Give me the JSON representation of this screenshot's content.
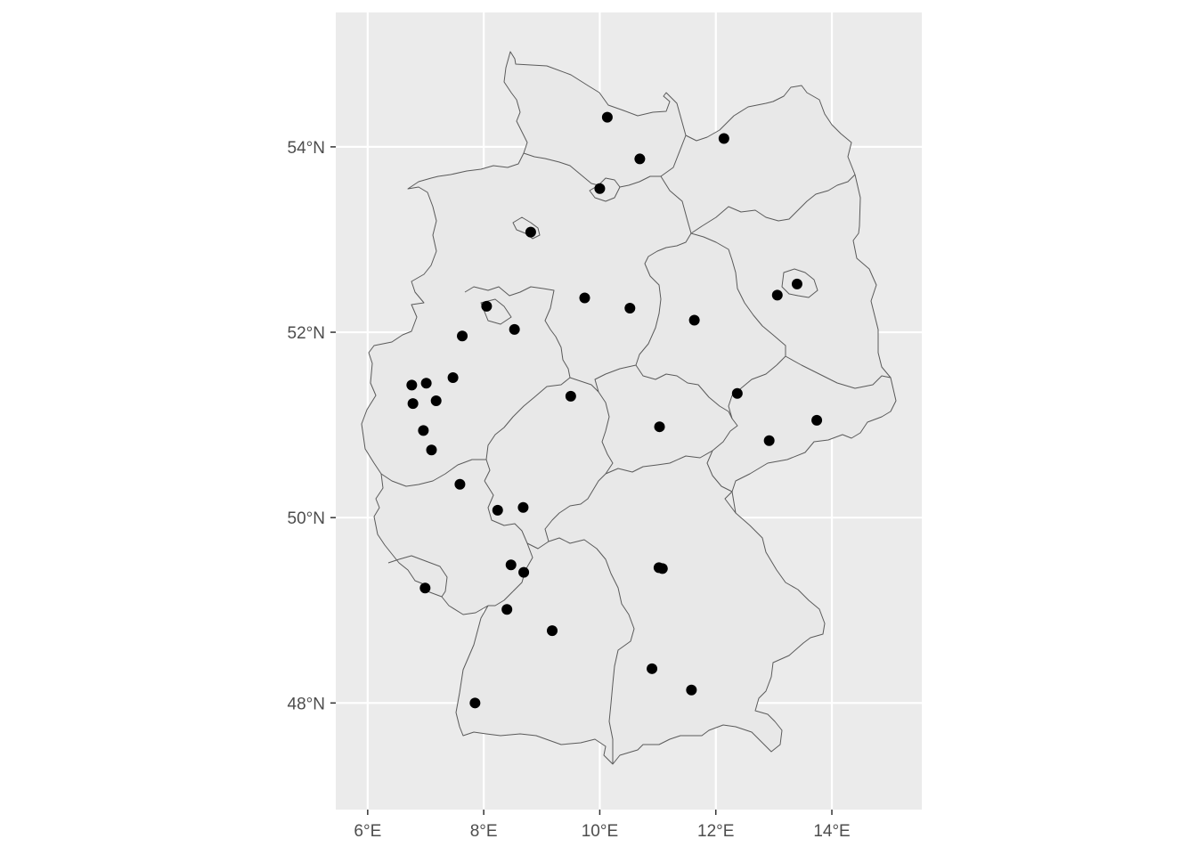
{
  "chart_data": {
    "type": "scatter",
    "title": "",
    "xlabel": "",
    "ylabel": "",
    "xlim": [
      5.45,
      15.55
    ],
    "ylim": [
      46.85,
      55.45
    ],
    "grid": true,
    "panel_color": "#ebebeb",
    "land_color": "#e8e8e8",
    "border_color": "#5a5a5a",
    "point_color": "#000000",
    "x_ticks": [
      {
        "value": 6,
        "label": "6°E"
      },
      {
        "value": 8,
        "label": "8°E"
      },
      {
        "value": 10,
        "label": "10°E"
      },
      {
        "value": 12,
        "label": "12°E"
      },
      {
        "value": 14,
        "label": "14°E"
      }
    ],
    "y_ticks": [
      {
        "value": 48,
        "label": "48°N"
      },
      {
        "value": 50,
        "label": "50°N"
      },
      {
        "value": 52,
        "label": "52°N"
      },
      {
        "value": 54,
        "label": "54°N"
      }
    ],
    "points": [
      {
        "lon": 10.13,
        "lat": 54.32
      },
      {
        "lon": 12.14,
        "lat": 54.09
      },
      {
        "lon": 10.69,
        "lat": 53.87
      },
      {
        "lon": 10.0,
        "lat": 53.55
      },
      {
        "lon": 8.81,
        "lat": 53.08
      },
      {
        "lon": 13.4,
        "lat": 52.52
      },
      {
        "lon": 13.06,
        "lat": 52.4
      },
      {
        "lon": 9.74,
        "lat": 52.37
      },
      {
        "lon": 10.52,
        "lat": 52.26
      },
      {
        "lon": 8.05,
        "lat": 52.28
      },
      {
        "lon": 8.53,
        "lat": 52.03
      },
      {
        "lon": 7.63,
        "lat": 51.96
      },
      {
        "lon": 11.63,
        "lat": 52.13
      },
      {
        "lon": 7.47,
        "lat": 51.51
      },
      {
        "lon": 7.01,
        "lat": 51.45
      },
      {
        "lon": 6.76,
        "lat": 51.43
      },
      {
        "lon": 6.78,
        "lat": 51.23
      },
      {
        "lon": 7.18,
        "lat": 51.26
      },
      {
        "lon": 6.96,
        "lat": 50.94
      },
      {
        "lon": 7.1,
        "lat": 50.73
      },
      {
        "lon": 9.5,
        "lat": 51.31
      },
      {
        "lon": 12.37,
        "lat": 51.34
      },
      {
        "lon": 13.74,
        "lat": 51.05
      },
      {
        "lon": 12.92,
        "lat": 50.83
      },
      {
        "lon": 11.03,
        "lat": 50.98
      },
      {
        "lon": 7.59,
        "lat": 50.36
      },
      {
        "lon": 8.24,
        "lat": 50.08
      },
      {
        "lon": 8.68,
        "lat": 50.11
      },
      {
        "lon": 8.47,
        "lat": 49.49
      },
      {
        "lon": 8.69,
        "lat": 49.41
      },
      {
        "lon": 6.99,
        "lat": 49.24
      },
      {
        "lon": 8.4,
        "lat": 49.01
      },
      {
        "lon": 9.18,
        "lat": 48.78
      },
      {
        "lon": 11.02,
        "lat": 49.46
      },
      {
        "lon": 11.08,
        "lat": 49.45
      },
      {
        "lon": 10.9,
        "lat": 48.37
      },
      {
        "lon": 11.58,
        "lat": 48.14
      },
      {
        "lon": 7.85,
        "lat": 48.0
      }
    ]
  }
}
